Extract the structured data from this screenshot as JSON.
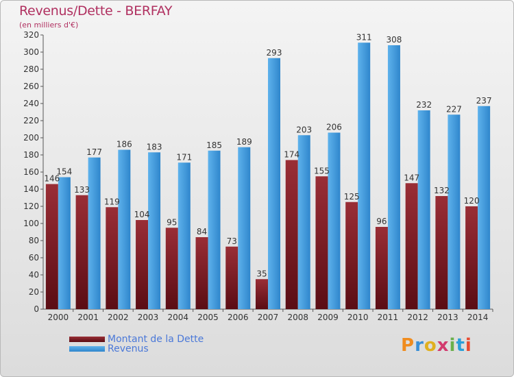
{
  "header": {
    "title": "Revenus/Dette - BERFAY",
    "subtitle": "(en milliers d'€)"
  },
  "legend": {
    "debt_label": "Montant de la Dette",
    "revenue_label": "Revenus"
  },
  "logo": {
    "text": "Proxiti",
    "letter_colors": [
      "#f08c1e",
      "#3a8fd6",
      "#e0b020",
      "#d23a6e",
      "#6ab04c",
      "#2a9fd8",
      "#e84a30"
    ]
  },
  "colors": {
    "debt": "#8b2530",
    "revenue": "#3a9be0",
    "axis": "#555555",
    "tick_text": "#333333",
    "value_text": "#333333"
  },
  "chart_data": {
    "type": "bar",
    "title": "Revenus/Dette - BERFAY",
    "subtitle": "(en milliers d'€)",
    "categories": [
      "2000",
      "2001",
      "2002",
      "2003",
      "2004",
      "2005",
      "2006",
      "2007",
      "2008",
      "2009",
      "2010",
      "2011",
      "2012",
      "2013",
      "2014"
    ],
    "series": [
      {
        "name": "Montant de la Dette",
        "values": [
          146,
          133,
          119,
          104,
          95,
          84,
          73,
          35,
          174,
          155,
          125,
          96,
          147,
          132,
          120
        ]
      },
      {
        "name": "Revenus",
        "values": [
          154,
          177,
          186,
          183,
          171,
          185,
          189,
          293,
          203,
          206,
          311,
          308,
          232,
          227,
          237
        ]
      }
    ],
    "ylim": [
      0,
      320
    ],
    "yticks": [
      0,
      20,
      40,
      60,
      80,
      100,
      120,
      140,
      160,
      180,
      200,
      220,
      240,
      260,
      280,
      300,
      320
    ],
    "grid": false,
    "legend_position": "bottom-left"
  }
}
